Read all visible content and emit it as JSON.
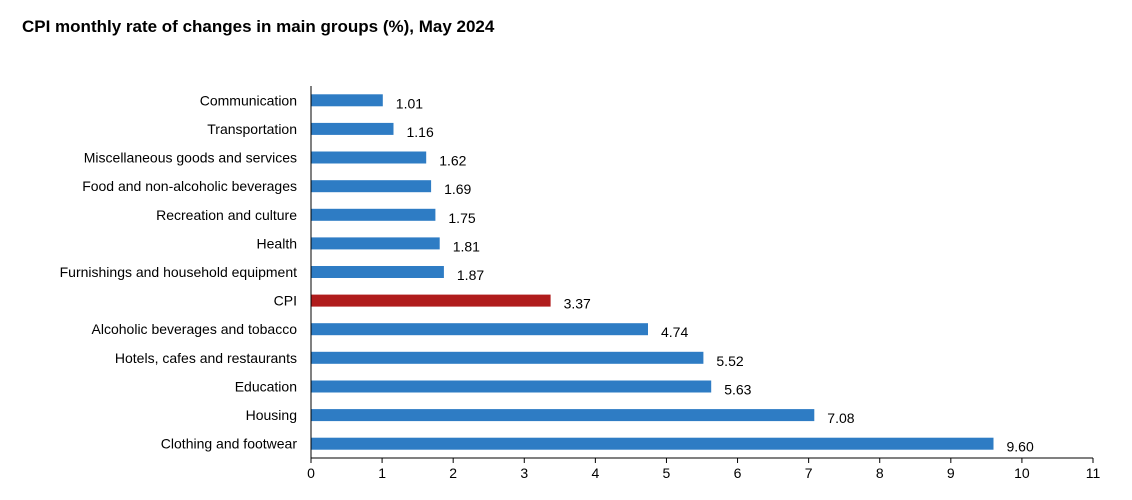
{
  "chart_data": {
    "type": "bar",
    "orientation": "horizontal",
    "title": "CPI monthly rate of changes in main groups (%), May 2024",
    "xlim": [
      0,
      11
    ],
    "xticks": [
      0,
      1,
      2,
      3,
      4,
      5,
      6,
      7,
      8,
      9,
      10,
      11
    ],
    "grid": false,
    "legend": "none",
    "categories": [
      "Communication",
      "Transportation",
      "Miscellaneous goods and services",
      "Food and non-alcoholic beverages",
      "Recreation and culture",
      "Health",
      "Furnishings and household equipment",
      "CPI",
      "Alcoholic beverages and tobacco",
      "Hotels, cafes and restaurants",
      "Education",
      "Housing",
      "Clothing and footwear"
    ],
    "values": [
      1.01,
      1.16,
      1.62,
      1.69,
      1.75,
      1.81,
      1.87,
      3.37,
      4.74,
      5.52,
      5.63,
      7.08,
      9.6
    ],
    "value_labels": [
      "1.01",
      "1.16",
      "1.62",
      "1.69",
      "1.75",
      "1.81",
      "1.87",
      "3.37",
      "4.74",
      "5.52",
      "5.63",
      "7.08",
      "9.60"
    ],
    "colors": {
      "bar": "#2E7CC4",
      "highlight": "#B01C1C",
      "axis": "#000000"
    },
    "highlight_category": "CPI"
  }
}
